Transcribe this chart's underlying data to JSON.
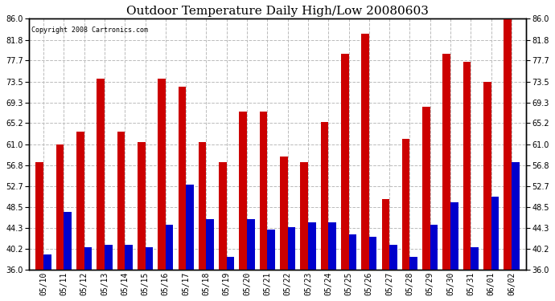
{
  "title": "Outdoor Temperature Daily High/Low 20080603",
  "copyright_text": "Copyright 2008 Cartronics.com",
  "dates": [
    "05/10",
    "05/11",
    "05/12",
    "05/13",
    "05/14",
    "05/15",
    "05/16",
    "05/17",
    "05/18",
    "05/19",
    "05/20",
    "05/21",
    "05/22",
    "05/23",
    "05/24",
    "05/25",
    "05/26",
    "05/27",
    "05/28",
    "05/29",
    "05/30",
    "05/31",
    "06/01",
    "06/02"
  ],
  "highs": [
    57.5,
    61.0,
    63.5,
    74.0,
    63.5,
    61.5,
    74.0,
    72.5,
    61.5,
    57.5,
    67.5,
    67.5,
    58.5,
    57.5,
    65.5,
    79.0,
    83.0,
    50.0,
    62.0,
    68.5,
    79.0,
    77.5,
    73.5,
    86.0
  ],
  "lows": [
    39.0,
    47.5,
    40.5,
    41.0,
    41.0,
    40.5,
    45.0,
    53.0,
    46.0,
    38.5,
    46.0,
    44.0,
    44.5,
    45.5,
    45.5,
    43.0,
    42.5,
    41.0,
    38.5,
    45.0,
    49.5,
    40.5,
    50.5,
    57.5
  ],
  "high_color": "#cc0000",
  "low_color": "#0000cc",
  "background_color": "#ffffff",
  "plot_bg_color": "#ffffff",
  "grid_color": "#bbbbbb",
  "ylim": [
    36.0,
    86.0
  ],
  "yticks": [
    36.0,
    40.2,
    44.3,
    48.5,
    52.7,
    56.8,
    61.0,
    65.2,
    69.3,
    73.5,
    77.7,
    81.8,
    86.0
  ],
  "title_fontsize": 11,
  "tick_fontsize": 7,
  "bar_width": 0.38
}
